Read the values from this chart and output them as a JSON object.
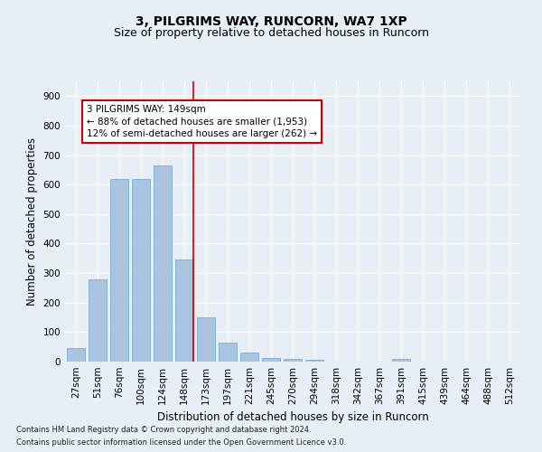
{
  "title": "3, PILGRIMS WAY, RUNCORN, WA7 1XP",
  "subtitle": "Size of property relative to detached houses in Runcorn",
  "xlabel": "Distribution of detached houses by size in Runcorn",
  "ylabel": "Number of detached properties",
  "footnote1": "Contains HM Land Registry data © Crown copyright and database right 2024.",
  "footnote2": "Contains public sector information licensed under the Open Government Licence v3.0.",
  "bar_labels": [
    "27sqm",
    "51sqm",
    "76sqm",
    "100sqm",
    "124sqm",
    "148sqm",
    "173sqm",
    "197sqm",
    "221sqm",
    "245sqm",
    "270sqm",
    "294sqm",
    "318sqm",
    "342sqm",
    "367sqm",
    "391sqm",
    "415sqm",
    "439sqm",
    "464sqm",
    "488sqm",
    "512sqm"
  ],
  "bar_values": [
    45,
    280,
    620,
    620,
    665,
    345,
    150,
    65,
    30,
    12,
    10,
    5,
    0,
    0,
    0,
    8,
    0,
    0,
    0,
    0,
    0
  ],
  "bar_color": "#aac4e0",
  "bar_edge_color": "#6aa8d0",
  "property_line_color": "#cc0000",
  "property_line_index": 5,
  "annotation_line1": "3 PILGRIMS WAY: 149sqm",
  "annotation_line2": "← 88% of detached houses are smaller (1,953)",
  "annotation_line3": "12% of semi-detached houses are larger (262) →",
  "annotation_box_color": "#cc0000",
  "ylim": [
    0,
    950
  ],
  "yticks": [
    0,
    100,
    200,
    300,
    400,
    500,
    600,
    700,
    800,
    900
  ],
  "background_color": "#e8eef6",
  "grid_color": "#ffffff",
  "title_fontsize": 10,
  "subtitle_fontsize": 9,
  "axis_label_fontsize": 8.5,
  "tick_fontsize": 7.5,
  "annotation_fontsize": 7.5
}
